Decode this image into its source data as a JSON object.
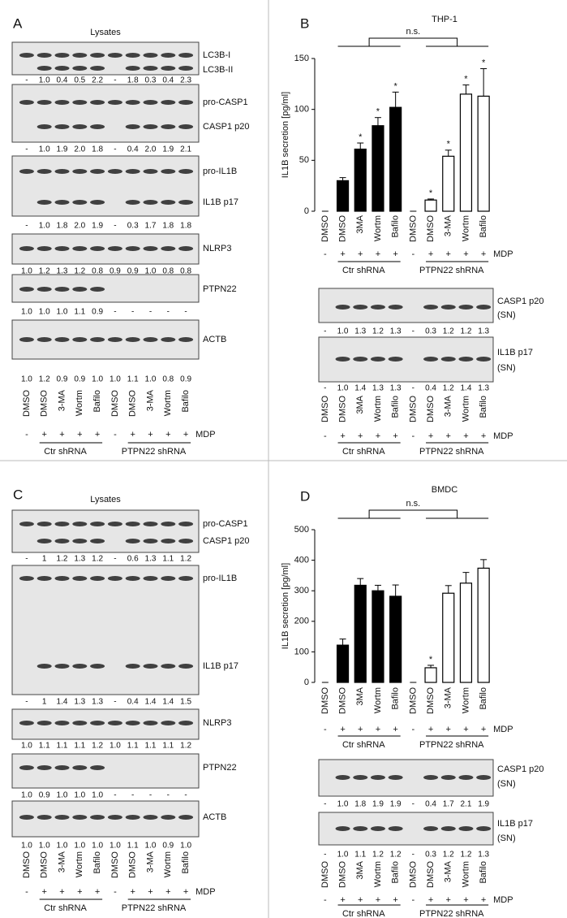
{
  "panels": [
    {
      "letter": "A",
      "title": "Lysates",
      "blots": [
        {
          "labels": [
            "LC3B-I",
            "LC3B-II"
          ],
          "quant": [
            "-",
            "1.0",
            "0.4",
            "0.5",
            "2.2",
            "-",
            "1.8",
            "0.3",
            "0.4",
            "2.3"
          ]
        },
        {
          "labels": [
            "pro-CASP1",
            "CASP1 p20"
          ],
          "quant": [
            "-",
            "1.0",
            "1.9",
            "2.0",
            "1.8",
            "-",
            "0.4",
            "2.0",
            "1.9",
            "2.1"
          ]
        },
        {
          "labels": [
            "pro-IL1B",
            "IL1B p17"
          ],
          "quant": [
            "-",
            "1.0",
            "1.8",
            "2.0",
            "1.9",
            "-",
            "0.3",
            "1.7",
            "1.8",
            "1.8"
          ]
        },
        {
          "labels": [
            "NLRP3"
          ],
          "quant": [
            "1.0",
            "1.2",
            "1.3",
            "1.2",
            "0.8",
            "0.9",
            "0.9",
            "1.0",
            "0.8",
            "0.8"
          ]
        },
        {
          "labels": [
            "PTPN22"
          ],
          "quant": [
            "1.0",
            "1.0",
            "1.0",
            "1.1",
            "0.9",
            "-",
            "-",
            "-",
            "-",
            "-"
          ]
        },
        {
          "labels": [
            "ACTB"
          ],
          "quant": [
            "1.0",
            "1.2",
            "0.9",
            "0.9",
            "1.0",
            "1.0",
            "1.1",
            "1.0",
            "0.8",
            "0.9"
          ]
        }
      ],
      "lanes": [
        "DMSO",
        "DMSO",
        "3-MA",
        "Wortm",
        "Bafilo",
        "DMSO",
        "DMSO",
        "3-MA",
        "Wortm",
        "Bafilo"
      ],
      "treatment": [
        "-",
        "+",
        "+",
        "+",
        "+",
        "-",
        "+",
        "+",
        "+",
        "+"
      ],
      "treatment_label": "MDP",
      "groups": [
        "Ctr shRNA",
        "PTPN22 shRNA"
      ]
    },
    {
      "letter": "B",
      "blots": [
        {
          "labels": [
            "CASP1 p20",
            "(SN)"
          ],
          "quant": [
            "-",
            "1.0",
            "1.3",
            "1.2",
            "1.3",
            "-",
            "0.3",
            "1.2",
            "1.2",
            "1.3"
          ]
        },
        {
          "labels": [
            "IL1B p17",
            "(SN)"
          ],
          "quant": [
            "-",
            "1.0",
            "1.4",
            "1.3",
            "1.3",
            "-",
            "0.4",
            "1.2",
            "1.4",
            "1.3"
          ]
        }
      ],
      "lanes": [
        "DMSO",
        "DMSO",
        "3MA",
        "Wortm",
        "Bafilo",
        "DMSO",
        "DMSO",
        "3-MA",
        "Wortm",
        "Bafilo"
      ],
      "treatment": [
        "-",
        "+",
        "+",
        "+",
        "+",
        "-",
        "+",
        "+",
        "+",
        "+"
      ],
      "treatment_label": "MDP",
      "groups": [
        "Ctr shRNA",
        "PTPN22 shRNA"
      ]
    },
    {
      "letter": "C",
      "title": "Lysates",
      "blots": [
        {
          "labels": [
            "pro-CASP1",
            "CASP1 p20"
          ],
          "quant": [
            "-",
            "1",
            "1.2",
            "1.3",
            "1.2",
            "-",
            "0.6",
            "1.3",
            "1.1",
            "1.2"
          ]
        },
        {
          "labels": [
            "pro-IL1B",
            "IL1B p17"
          ],
          "quant": [
            "-",
            "1",
            "1.4",
            "1.3",
            "1.3",
            "-",
            "0.4",
            "1.4",
            "1.4",
            "1.5"
          ]
        },
        {
          "labels": [
            "NLRP3"
          ],
          "quant": [
            "1.0",
            "1.1",
            "1.1",
            "1.1",
            "1.2",
            "1.0",
            "1.1",
            "1.1",
            "1.1",
            "1.2"
          ]
        },
        {
          "labels": [
            "PTPN22"
          ],
          "quant": [
            "1.0",
            "0.9",
            "1.0",
            "1.0",
            "1.0",
            "-",
            "-",
            "-",
            "-",
            "-"
          ]
        },
        {
          "labels": [
            "ACTB"
          ],
          "quant": [
            "1.0",
            "1.0",
            "1.0",
            "1.0",
            "1.0",
            "1.0",
            "1.1",
            "1.0",
            "0.9",
            "1.0"
          ]
        }
      ],
      "lanes": [
        "DMSO",
        "DMSO",
        "3-MA",
        "Wortm",
        "Bafilo",
        "DMSO",
        "DMSO",
        "3-MA",
        "Wortm",
        "Bafilo"
      ],
      "treatment": [
        "-",
        "+",
        "+",
        "+",
        "+",
        "-",
        "+",
        "+",
        "+",
        "+"
      ],
      "treatment_label": "MDP",
      "groups": [
        "Ctr shRNA",
        "PTPN22 shRNA"
      ]
    },
    {
      "letter": "D",
      "blots": [
        {
          "labels": [
            "CASP1 p20",
            "(SN)"
          ],
          "quant": [
            "-",
            "1.0",
            "1.8",
            "1.9",
            "1.9",
            "-",
            "0.4",
            "1.7",
            "2.1",
            "1.9"
          ]
        },
        {
          "labels": [
            "IL1B p17",
            "(SN)"
          ],
          "quant": [
            "-",
            "1.0",
            "1.1",
            "1.2",
            "1.2",
            "-",
            "0.3",
            "1.2",
            "1.2",
            "1.3"
          ]
        }
      ],
      "lanes": [
        "DMSO",
        "DMSO",
        "3MA",
        "Wortm",
        "Bafilo",
        "DMSO",
        "DMSO",
        "3-MA",
        "Wortm",
        "Bafilo"
      ],
      "treatment": [
        "-",
        "+",
        "+",
        "+",
        "+",
        "-",
        "+",
        "+",
        "+",
        "+"
      ],
      "treatment_label": "MDP",
      "groups": [
        "Ctr shRNA",
        "PTPN22 shRNA"
      ]
    }
  ],
  "chart_data": [
    {
      "type": "bar",
      "title": "THP-1",
      "y_label": "IL1B secretion [pg/ml]",
      "categories": [
        "DMSO",
        "DMSO",
        "3MA",
        "Wortm",
        "Bafilo",
        "DMSO",
        "DMSO",
        "3-MA",
        "Wortm",
        "Bafilo"
      ],
      "treatment": [
        "-",
        "+",
        "+",
        "+",
        "+",
        "-",
        "+",
        "+",
        "+",
        "+"
      ],
      "treatment_label": "MDP",
      "groups": [
        "Ctr shRNA",
        "PTPN22 shRNA"
      ],
      "values": [
        0,
        30,
        61,
        84,
        102,
        0,
        11,
        54,
        115,
        113
      ],
      "errors": [
        0,
        3,
        6,
        8,
        15,
        0,
        1,
        6,
        9,
        27
      ],
      "colors": [
        "#000000",
        "#000000",
        "#000000",
        "#000000",
        "#000000",
        "#ffffff",
        "#ffffff",
        "#ffffff",
        "#ffffff",
        "#ffffff"
      ],
      "significance": [
        null,
        null,
        "*",
        "*",
        "*",
        null,
        "*",
        "*",
        "*",
        "*"
      ],
      "comparison_label": "n.s.",
      "ylim": [
        0,
        150
      ],
      "yticks": [
        0,
        50,
        100,
        150
      ]
    },
    {
      "type": "bar",
      "title": "BMDC",
      "y_label": "IL1B secretion [pg/ml]",
      "categories": [
        "DMSO",
        "DMSO",
        "3MA",
        "Wortm",
        "Bafilo",
        "DMSO",
        "DMSO",
        "3-MA",
        "Wortm",
        "Bafilo"
      ],
      "treatment": [
        "-",
        "+",
        "+",
        "+",
        "+",
        "-",
        "+",
        "+",
        "+",
        "+"
      ],
      "treatment_label": "MDP",
      "groups": [
        "Ctr shRNA",
        "PTPN22 shRNA"
      ],
      "values": [
        0,
        122,
        318,
        300,
        282,
        0,
        48,
        292,
        325,
        374
      ],
      "errors": [
        0,
        20,
        22,
        18,
        37,
        0,
        8,
        25,
        35,
        28
      ],
      "colors": [
        "#000000",
        "#000000",
        "#000000",
        "#000000",
        "#000000",
        "#ffffff",
        "#ffffff",
        "#ffffff",
        "#ffffff",
        "#ffffff"
      ],
      "significance": [
        null,
        null,
        null,
        null,
        null,
        null,
        "*",
        null,
        null,
        null
      ],
      "comparison_label": "n.s.",
      "ylim": [
        0,
        500
      ],
      "yticks": [
        0,
        100,
        200,
        300,
        400,
        500
      ]
    }
  ]
}
